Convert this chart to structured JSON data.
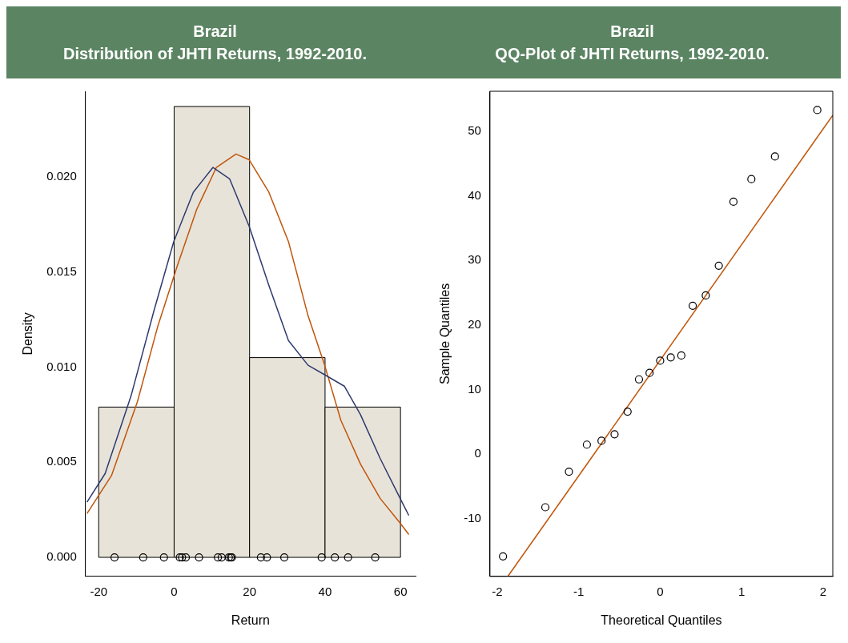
{
  "chart_data": [
    {
      "type": "histogram",
      "title": "Brazil",
      "subtitle": "Distribution of JHTI Returns, 1992-2010.",
      "xlabel": "Return",
      "ylabel": "Density",
      "bins": [
        -20,
        0,
        20,
        40,
        60
      ],
      "values": [
        0.0079,
        0.0237,
        0.0105,
        0.0079
      ],
      "color": "#e8e3d9",
      "xlim": [
        -23.5,
        64
      ],
      "ylim": [
        -0.001,
        0.0245
      ],
      "xticks": [
        -20,
        0,
        20,
        40,
        60
      ],
      "yticks": [
        {
          "value": 0,
          "label": "0.000"
        },
        {
          "value": 0.005,
          "label": "0.005"
        },
        {
          "value": 0.01,
          "label": "0.010"
        },
        {
          "value": 0.015,
          "label": "0.015"
        },
        {
          "value": 0.02,
          "label": "0.020"
        }
      ],
      "grid": false,
      "series": [
        {
          "type": "line",
          "color": "#2e3a6e",
          "x": [
            -23.1,
            -18.3,
            -11.4,
            -5.3,
            -0.1,
            5.1,
            10.3,
            14.7,
            19.9,
            25.1,
            30.3,
            35.5,
            39.9,
            45.1,
            49.4,
            54.6,
            59.9,
            62.2
          ],
          "values": [
            0.0029,
            0.0044,
            0.0085,
            0.013,
            0.0166,
            0.0192,
            0.0205,
            0.0199,
            0.0174,
            0.0143,
            0.0114,
            0.0101,
            0.0096,
            0.009,
            0.0075,
            0.0052,
            0.0031,
            0.0022
          ]
        },
        {
          "type": "line",
          "color": "#c0550a",
          "x": [
            -23.1,
            -16.6,
            -9.7,
            -4.4,
            0.8,
            6.0,
            11.2,
            16.4,
            19.9,
            25.1,
            30.3,
            35.5,
            39.9,
            44.2,
            49.4,
            54.6,
            59.9,
            62.2
          ],
          "values": [
            0.0023,
            0.0043,
            0.0082,
            0.0121,
            0.0153,
            0.0183,
            0.0205,
            0.0212,
            0.0209,
            0.0192,
            0.0166,
            0.0127,
            0.0101,
            0.0072,
            0.0049,
            0.0031,
            0.0018,
            0.0012
          ]
        },
        {
          "type": "scatter",
          "color": "#000000",
          "marker": "circle",
          "x": [
            -15.8,
            -8.2,
            -2.7,
            1.5,
            2.1,
            3.1,
            6.6,
            11.6,
            12.6,
            14.5,
            15.0,
            15.3,
            23.0,
            24.6,
            29.2,
            39.1,
            42.6,
            46.1,
            53.3
          ],
          "values": [
            0,
            0,
            0,
            0,
            0,
            0,
            0,
            0,
            0,
            0,
            0,
            0,
            0,
            0,
            0,
            0,
            0,
            0,
            0
          ]
        }
      ]
    },
    {
      "type": "scatter",
      "title": "Brazil",
      "subtitle": "QQ-Plot of JHTI Returns, 1992-2010.",
      "xlabel": "Theoretical Quantiles",
      "ylabel": "Sample Quantiles",
      "xlim": [
        -2.09,
        2.12
      ],
      "ylim": [
        -18.9,
        56.2
      ],
      "xticks": [
        -2,
        -1,
        0,
        1,
        2
      ],
      "yticks": [
        -10,
        0,
        10,
        20,
        30,
        40,
        50
      ],
      "grid": false,
      "series": [
        {
          "type": "scatter",
          "color": "#000000",
          "marker": "circle",
          "x": [
            -1.93,
            -1.41,
            -1.12,
            -0.9,
            -0.72,
            -0.56,
            -0.4,
            -0.26,
            -0.13,
            0,
            0.13,
            0.26,
            0.4,
            0.56,
            0.72,
            0.9,
            1.12,
            1.41,
            1.93
          ],
          "values": [
            -15.8,
            -8.2,
            -2.7,
            1.5,
            2.1,
            3.1,
            6.6,
            11.6,
            12.6,
            14.5,
            15.0,
            15.3,
            23.0,
            24.6,
            29.2,
            39.1,
            42.6,
            46.1,
            53.3
          ]
        },
        {
          "type": "line",
          "color": "#c0550a",
          "x": [
            -1.87,
            2.12
          ],
          "values": [
            -18.9,
            52.5
          ]
        }
      ]
    }
  ]
}
